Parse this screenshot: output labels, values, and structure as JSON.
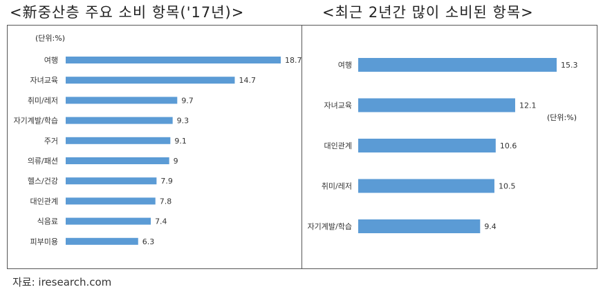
{
  "titles": {
    "left": "<新중산층 주요 소비 항목('17년)>",
    "right": "<최근 2년간 많이 소비된 항목>"
  },
  "source": "자료: iresearch.com",
  "colors": {
    "bar": "#5b9bd5",
    "frame": "#555555"
  },
  "chart_data": [
    {
      "type": "bar",
      "orientation": "horizontal",
      "title": "<新중산층 주요 소비 항목('17년)>",
      "unit_label": "(단위:%)",
      "categories": [
        "여행",
        "자녀교육",
        "취미/레저",
        "자기계발/학습",
        "주거",
        "의류/패션",
        "헬스/건강",
        "대인관계",
        "식음료",
        "피부미용"
      ],
      "values": [
        18.7,
        14.7,
        9.7,
        9.3,
        9.1,
        9,
        7.9,
        7.8,
        7.4,
        6.3
      ],
      "value_labels": [
        "18.7",
        "14.7",
        "9.7",
        "9.3",
        "9.1",
        "9",
        "7.9",
        "7.8",
        "7.4",
        "6.3"
      ],
      "xlim": [
        0,
        18.7
      ],
      "grid": false,
      "legend": false
    },
    {
      "type": "bar",
      "orientation": "horizontal",
      "title": "<최근 2년간 많이 소비된 항목>",
      "unit_label": "(단위:%)",
      "categories": [
        "여행",
        "자녀교육",
        "대인관계",
        "취미/레저",
        "자기계발/학습"
      ],
      "values": [
        15.3,
        12.1,
        10.6,
        10.5,
        9.4
      ],
      "value_labels": [
        "15.3",
        "12.1",
        "10.6",
        "10.5",
        "9.4"
      ],
      "xlim": [
        0,
        15.3
      ],
      "grid": false,
      "legend": false
    }
  ]
}
